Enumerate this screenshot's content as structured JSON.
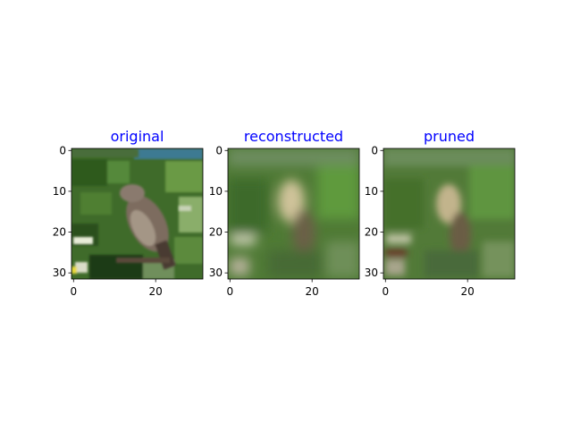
{
  "figure": {
    "title_color": "#0000ff"
  },
  "chart_data": [
    {
      "type": "image",
      "title": "original",
      "xticks": [
        0,
        20
      ],
      "yticks": [
        0,
        10,
        20,
        30
      ],
      "xlim": [
        -0.5,
        31.5
      ],
      "ylim": [
        31.5,
        -0.5
      ],
      "image_size": [
        32,
        32
      ],
      "content": "sharp photo of a small brown bird perched on a branch among green grass and small white flowers"
    },
    {
      "type": "image",
      "title": "reconstructed",
      "xticks": [
        0,
        20
      ],
      "yticks": [
        0,
        10,
        20,
        30
      ],
      "xlim": [
        -0.5,
        31.5
      ],
      "ylim": [
        31.5,
        -0.5
      ],
      "image_size": [
        32,
        32
      ],
      "content": "blurred reconstruction of the bird image"
    },
    {
      "type": "image",
      "title": "pruned",
      "xticks": [
        0,
        20
      ],
      "yticks": [
        0,
        10,
        20,
        30
      ],
      "xlim": [
        -0.5,
        31.5
      ],
      "ylim": [
        31.5,
        -0.5
      ],
      "image_size": [
        32,
        32
      ],
      "content": "blurred reconstruction of the bird image after pruning"
    }
  ]
}
